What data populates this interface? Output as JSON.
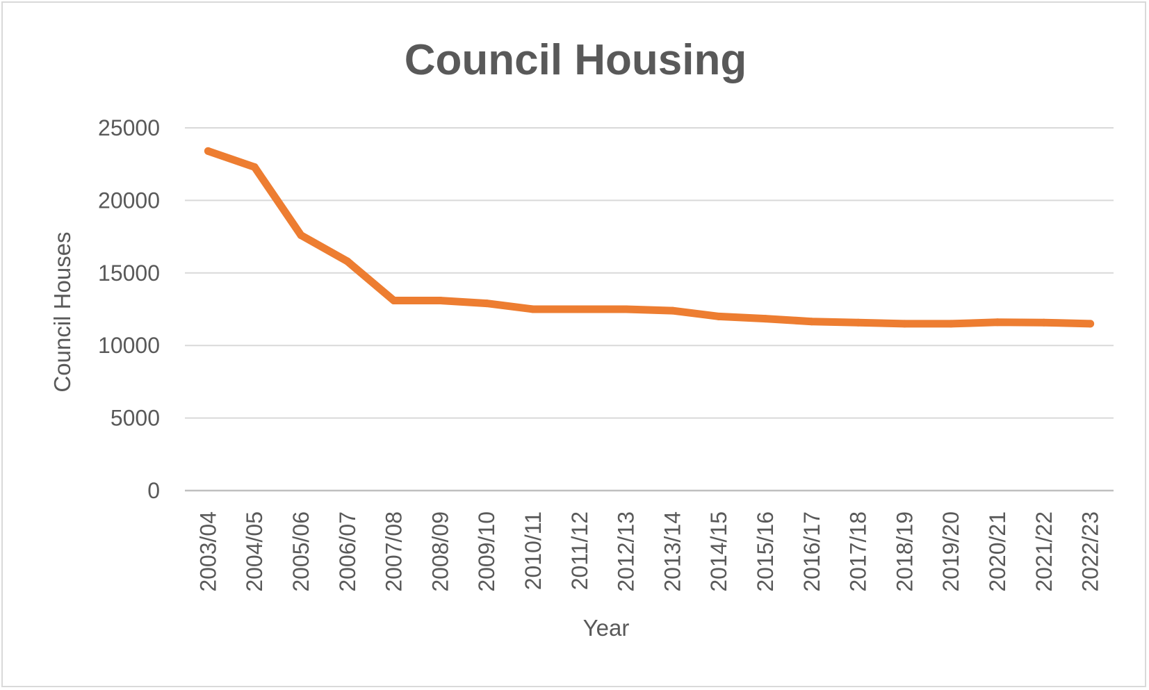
{
  "chart_data": {
    "type": "line",
    "title": "Council Housing",
    "xlabel": "Year",
    "ylabel": "Council Houses",
    "ylim": [
      0,
      25000
    ],
    "yticks": [
      0,
      5000,
      10000,
      15000,
      20000,
      25000
    ],
    "grid": true,
    "legend": "none",
    "categories": [
      "2003/04",
      "2004/05",
      "2005/06",
      "2006/07",
      "2007/08",
      "2008/09",
      "2009/10",
      "2010/11",
      "2011/12",
      "2012/13",
      "2013/14",
      "2014/15",
      "2015/16",
      "2016/17",
      "2017/18",
      "2018/19",
      "2019/20",
      "2020/21",
      "2021/22",
      "2022/23"
    ],
    "series": [
      {
        "color": "#ed7d31",
        "values": [
          23400,
          22300,
          17600,
          15800,
          13100,
          13100,
          12900,
          12500,
          12500,
          12500,
          12400,
          12000,
          11850,
          11650,
          11580,
          11500,
          11500,
          11600,
          11580,
          11500
        ]
      }
    ]
  }
}
